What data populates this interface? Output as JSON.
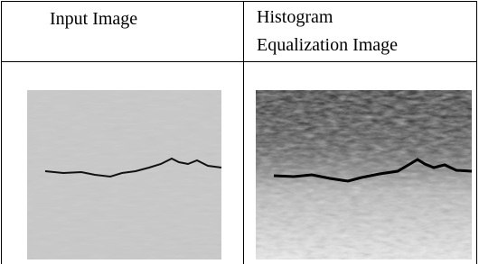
{
  "table": {
    "header": [
      "Input Image",
      "Histogram Equalization Image"
    ]
  }
}
